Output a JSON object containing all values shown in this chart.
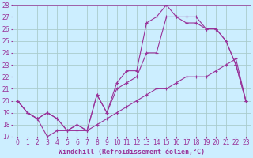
{
  "xlabel": "Windchill (Refroidissement éolien,°C)",
  "bg_color": "#cceeff",
  "grid_color": "#aacccc",
  "line_color": "#993399",
  "xlim": [
    -0.5,
    23.5
  ],
  "ylim": [
    17,
    28
  ],
  "xticks": [
    0,
    1,
    2,
    3,
    4,
    5,
    6,
    7,
    8,
    9,
    10,
    11,
    12,
    13,
    14,
    15,
    16,
    17,
    18,
    19,
    20,
    21,
    22,
    23
  ],
  "yticks": [
    17,
    18,
    19,
    20,
    21,
    22,
    23,
    24,
    25,
    26,
    27,
    28
  ],
  "line1_x": [
    0,
    1,
    2,
    3,
    4,
    5,
    6,
    7,
    8,
    9,
    10,
    11,
    12,
    13,
    14,
    15,
    16,
    17,
    18,
    19,
    20,
    21,
    22,
    23
  ],
  "line1_y": [
    20,
    19,
    18.5,
    17,
    17.5,
    17.5,
    17.5,
    17.5,
    18,
    18.5,
    19,
    19.5,
    20,
    20.5,
    21,
    21,
    21.5,
    22,
    22,
    22,
    22.5,
    23,
    23.5,
    20
  ],
  "line2_x": [
    0,
    1,
    2,
    3,
    4,
    5,
    6,
    7,
    8,
    9,
    10,
    11,
    12,
    13,
    14,
    15,
    16,
    17,
    18,
    19,
    20,
    21,
    22,
    23
  ],
  "line2_y": [
    20,
    19,
    18.5,
    19,
    18.5,
    17.5,
    18,
    17.5,
    20.5,
    19,
    21,
    21.5,
    22,
    24,
    24,
    27,
    27,
    26.5,
    26.5,
    26,
    26,
    25,
    23,
    20
  ],
  "line3_x": [
    0,
    1,
    2,
    3,
    4,
    5,
    6,
    7,
    8,
    9,
    10,
    11,
    12,
    13,
    14,
    15,
    16,
    17,
    18,
    19,
    20,
    21,
    22,
    23
  ],
  "line3_y": [
    20,
    19,
    18.5,
    19,
    18.5,
    17.5,
    18,
    17.5,
    20.5,
    19,
    21.5,
    22.5,
    22.5,
    26.5,
    27,
    28,
    27,
    27,
    27,
    26,
    26,
    25,
    23,
    20
  ],
  "xlabel_fontsize": 6,
  "tick_fontsize": 5.5
}
